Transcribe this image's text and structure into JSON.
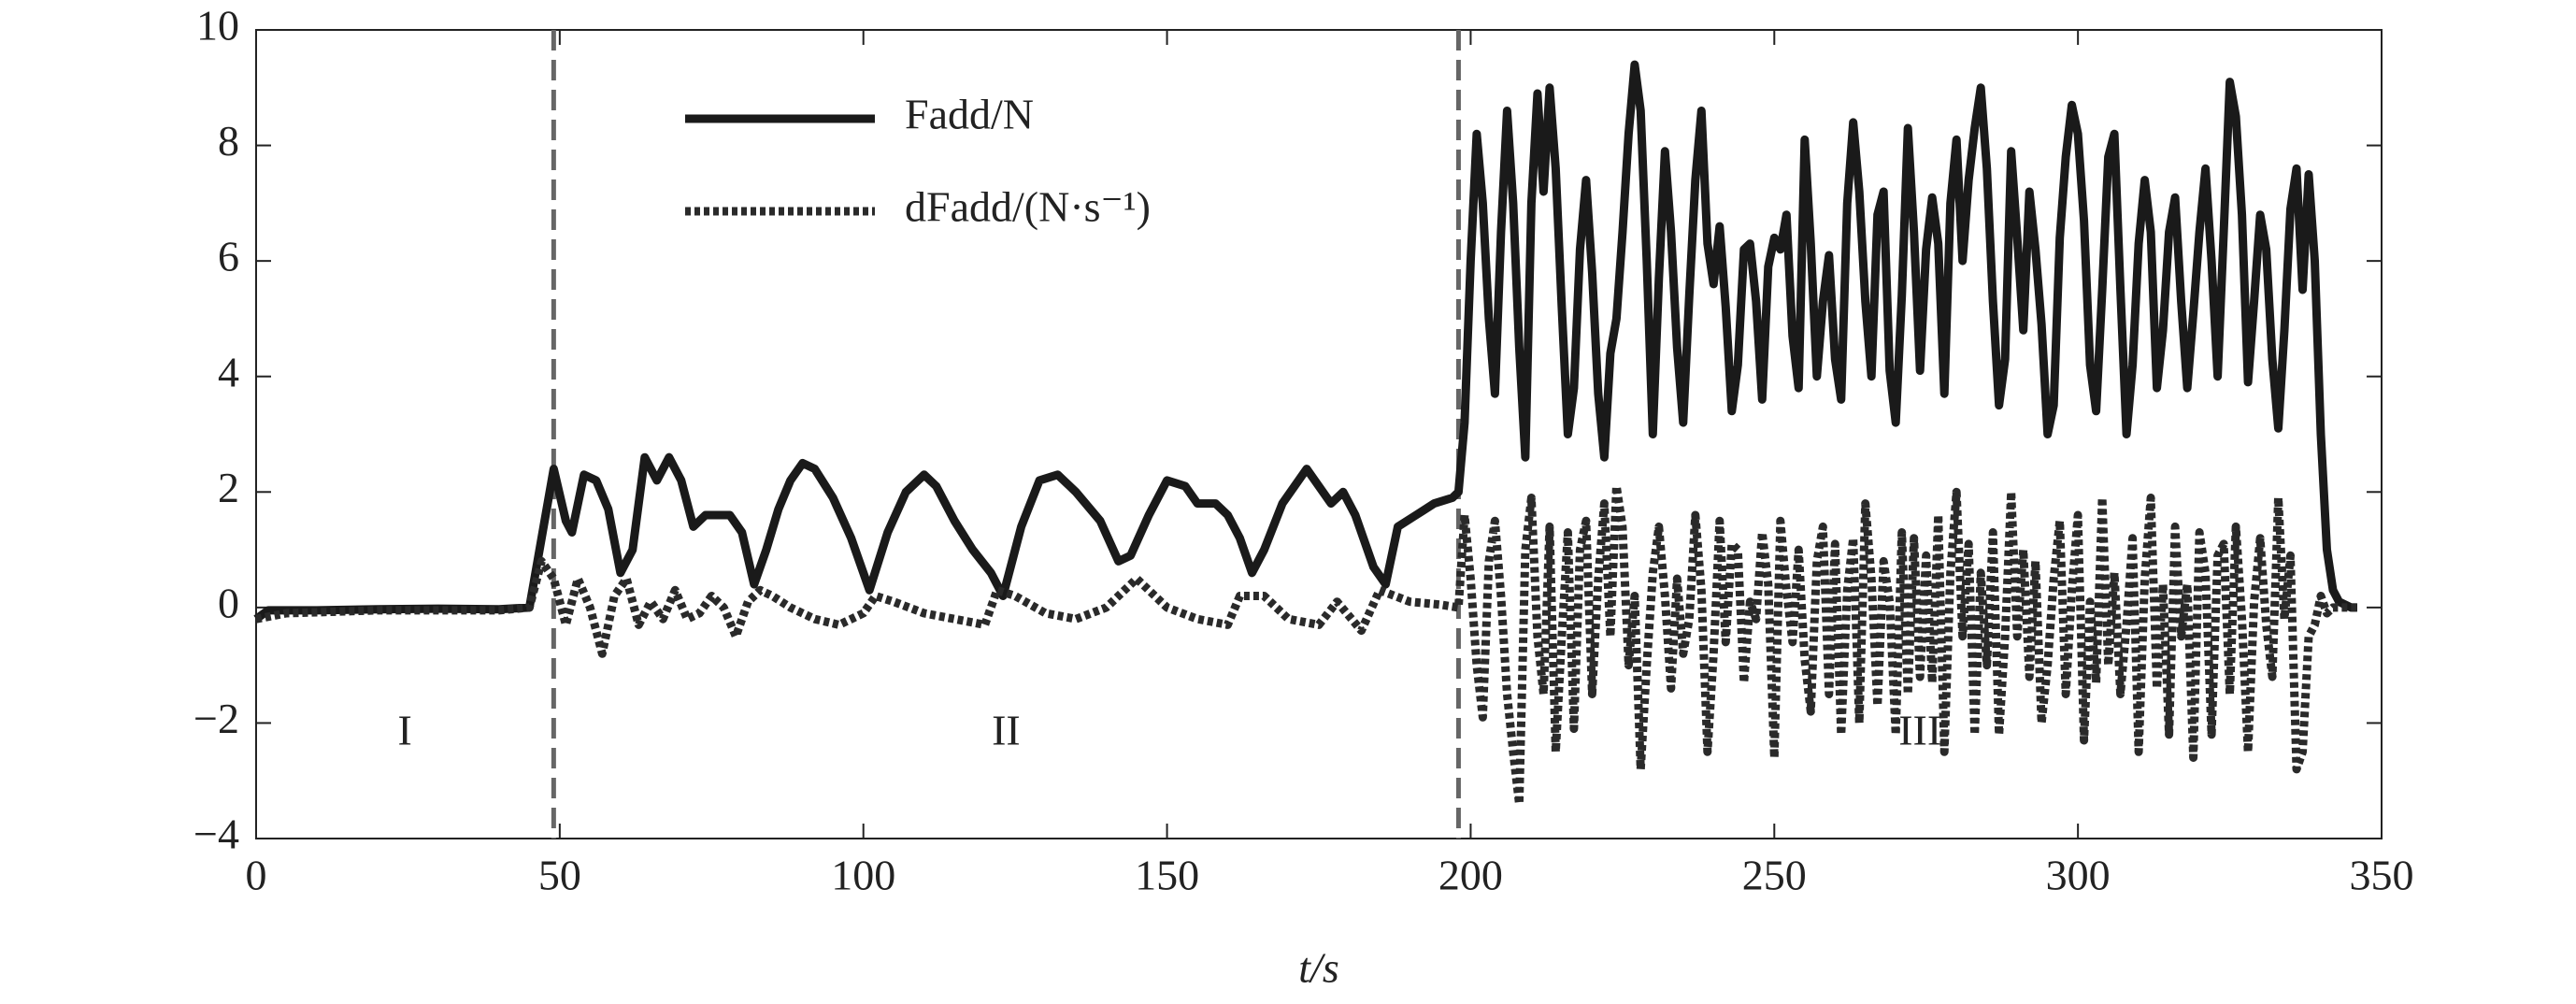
{
  "chart_data": {
    "type": "line",
    "xlabel": "t/s",
    "xlim": [
      0,
      350
    ],
    "xticks": [
      0,
      50,
      100,
      150,
      200,
      250,
      300,
      350
    ],
    "ylim": [
      -4,
      10
    ],
    "yticks": [
      {
        "value": -4,
        "label": "−4"
      },
      {
        "value": -2,
        "label": "−2"
      },
      0,
      2,
      4,
      6,
      8,
      10
    ],
    "vlines": [
      49,
      198
    ],
    "annotations": [
      "I",
      "II",
      "III"
    ],
    "legend": "upper left",
    "series": [
      {
        "name": "Fadd/N",
        "color": "#1a1a1a",
        "style": "solid",
        "x": [
          0,
          2,
          10,
          20,
          30,
          40,
          45,
          47,
          49,
          51,
          52,
          54,
          56,
          58,
          60,
          62,
          64,
          66,
          68,
          70,
          72,
          74,
          78,
          80,
          82,
          84,
          86,
          88,
          90,
          92,
          95,
          98,
          101,
          104,
          107,
          110,
          112,
          115,
          118,
          121,
          123,
          126,
          129,
          132,
          135,
          139,
          142,
          144,
          147,
          150,
          153,
          155,
          158,
          160,
          162,
          164,
          166,
          169,
          173,
          175,
          177,
          179,
          181,
          184,
          186,
          188,
          191,
          194,
          197,
          198,
          199,
          200,
          201,
          202,
          203,
          204,
          205,
          206,
          207,
          208,
          209,
          210,
          211,
          212,
          213,
          214,
          215,
          216,
          217,
          218,
          219,
          220,
          221,
          222,
          223,
          224,
          225,
          226,
          227,
          228,
          229,
          230,
          231,
          232,
          233,
          234,
          235,
          236,
          237,
          238,
          239,
          240,
          241,
          242,
          243,
          244,
          245,
          246,
          247,
          248,
          249,
          250,
          251,
          252,
          253,
          254,
          255,
          256,
          257,
          258,
          259,
          260,
          261,
          262,
          263,
          264,
          265,
          266,
          267,
          268,
          269,
          270,
          271,
          272,
          273,
          274,
          275,
          276,
          277,
          278,
          279,
          280,
          281,
          282,
          283,
          284,
          285,
          286,
          287,
          288,
          289,
          290,
          291,
          292,
          293,
          294,
          295,
          296,
          297,
          298,
          299,
          300,
          301,
          302,
          303,
          304,
          305,
          306,
          307,
          308,
          309,
          310,
          311,
          312,
          313,
          314,
          315,
          316,
          317,
          318,
          319,
          320,
          321,
          322,
          323,
          324,
          325,
          326,
          327,
          328,
          329,
          330,
          331,
          332,
          333,
          334,
          335,
          336,
          337,
          338,
          339,
          340,
          341,
          342,
          343,
          345,
          346
        ],
        "values": [
          -0.2,
          -0.05,
          -0.05,
          -0.03,
          -0.02,
          -0.03,
          0,
          1.2,
          2.4,
          1.5,
          1.3,
          2.3,
          2.2,
          1.7,
          0.6,
          1.0,
          2.6,
          2.2,
          2.6,
          2.2,
          1.4,
          1.6,
          1.6,
          1.3,
          0.4,
          1.0,
          1.7,
          2.2,
          2.5,
          2.4,
          1.9,
          1.2,
          0.3,
          1.3,
          2.0,
          2.3,
          2.1,
          1.5,
          1.0,
          0.6,
          0.2,
          1.4,
          2.2,
          2.3,
          2.0,
          1.5,
          0.8,
          0.9,
          1.6,
          2.2,
          2.1,
          1.8,
          1.8,
          1.6,
          1.2,
          0.6,
          1.0,
          1.8,
          2.4,
          2.1,
          1.8,
          2.0,
          1.6,
          0.7,
          0.4,
          1.4,
          1.6,
          1.8,
          1.9,
          2.0,
          3.2,
          6.0,
          8.2,
          7.0,
          5.0,
          3.7,
          6.5,
          8.6,
          7.0,
          4.5,
          2.6,
          7.0,
          8.9,
          7.2,
          9.0,
          7.6,
          5.2,
          3.0,
          3.8,
          6.2,
          7.4,
          5.8,
          3.7,
          2.6,
          4.4,
          5.0,
          6.5,
          8.2,
          9.4,
          8.6,
          6.0,
          3.0,
          5.7,
          7.9,
          6.5,
          4.5,
          3.2,
          5.4,
          7.4,
          8.6,
          6.3,
          5.6,
          6.6,
          5.2,
          3.4,
          4.2,
          6.2,
          6.3,
          5.3,
          3.6,
          5.9,
          6.4,
          6.2,
          6.8,
          4.7,
          3.8,
          8.1,
          6.3,
          4.0,
          5.3,
          6.1,
          4.3,
          3.6,
          7.0,
          8.4,
          7.2,
          5.3,
          4.0,
          6.8,
          7.2,
          4.1,
          3.2,
          5.4,
          8.3,
          6.5,
          4.1,
          6.2,
          7.1,
          6.3,
          3.7,
          7.0,
          8.1,
          6.0,
          7.4,
          8.3,
          9.0,
          7.6,
          5.3,
          3.5,
          4.3,
          7.9,
          6.4,
          4.8,
          7.2,
          6.2,
          4.9,
          3.0,
          3.5,
          6.4,
          7.8,
          8.7,
          8.2,
          6.7,
          4.2,
          3.4,
          5.5,
          7.8,
          8.2,
          5.5,
          3.0,
          4.2,
          6.3,
          7.4,
          6.5,
          3.8,
          4.8,
          6.5,
          7.1,
          5.3,
          3.8,
          5.1,
          6.5,
          7.6,
          6.0,
          4.0,
          6.5,
          9.1,
          8.5,
          6.8,
          3.9,
          5.3,
          6.8,
          6.2,
          4.3,
          3.1,
          4.8,
          6.9,
          7.6,
          5.5,
          7.5,
          6.0,
          3.0,
          1.0,
          0.3,
          0.1,
          0,
          0
        ]
      },
      {
        "name": "dFadd/(N·s⁻¹)",
        "color": "#2a2a2a",
        "style": "dotted",
        "x": [
          0,
          5,
          20,
          40,
          45,
          47,
          49,
          51,
          53,
          55,
          57,
          59,
          61,
          63,
          65,
          67,
          69,
          71,
          73,
          75,
          77,
          79,
          81,
          83,
          85,
          88,
          92,
          96,
          100,
          102,
          105,
          110,
          115,
          120,
          122,
          125,
          130,
          135,
          140,
          145,
          150,
          155,
          160,
          162,
          166,
          170,
          175,
          178,
          182,
          185,
          190,
          195,
          198,
          199,
          200,
          201,
          202,
          203,
          204,
          205,
          206,
          207,
          208,
          209,
          210,
          211,
          212,
          213,
          214,
          215,
          216,
          217,
          218,
          219,
          220,
          221,
          222,
          223,
          224,
          225,
          226,
          227,
          228,
          229,
          230,
          231,
          232,
          233,
          234,
          235,
          236,
          237,
          238,
          239,
          240,
          241,
          242,
          243,
          244,
          245,
          246,
          247,
          248,
          249,
          250,
          251,
          252,
          253,
          254,
          255,
          256,
          257,
          258,
          259,
          260,
          261,
          262,
          263,
          264,
          265,
          266,
          267,
          268,
          269,
          270,
          271,
          272,
          273,
          274,
          275,
          276,
          277,
          278,
          279,
          280,
          281,
          282,
          283,
          284,
          285,
          286,
          287,
          288,
          289,
          290,
          291,
          292,
          293,
          294,
          295,
          296,
          297,
          298,
          299,
          300,
          301,
          302,
          303,
          304,
          305,
          306,
          307,
          308,
          309,
          310,
          311,
          312,
          313,
          314,
          315,
          316,
          317,
          318,
          319,
          320,
          321,
          322,
          323,
          324,
          325,
          326,
          327,
          328,
          329,
          330,
          331,
          332,
          333,
          334,
          335,
          336,
          337,
          338,
          339,
          340,
          341,
          342,
          346
        ],
        "values": [
          -0.2,
          -0.1,
          -0.05,
          -0.05,
          0,
          0.8,
          0.5,
          -0.3,
          0.5,
          0,
          -0.8,
          0.2,
          0.5,
          -0.3,
          0.1,
          -0.2,
          0.3,
          -0.2,
          -0.1,
          0.2,
          0,
          -0.5,
          0.1,
          0.3,
          0.2,
          0,
          -0.2,
          -0.3,
          -0.1,
          0.2,
          0.1,
          -0.1,
          -0.2,
          -0.3,
          0.3,
          0.2,
          -0.1,
          -0.2,
          0,
          0.5,
          0,
          -0.2,
          -0.3,
          0.2,
          0.2,
          -0.2,
          -0.3,
          0.1,
          -0.4,
          0.3,
          0.1,
          0.05,
          0,
          1.6,
          0.5,
          -1.0,
          -1.9,
          0.8,
          1.5,
          0.2,
          -1.5,
          -2.5,
          -3.4,
          1.0,
          1.9,
          -0.5,
          -1.5,
          1.4,
          -2.5,
          -0.5,
          1.3,
          -2.1,
          1.0,
          1.5,
          -1.5,
          0.5,
          1.8,
          -0.5,
          2.1,
          1.4,
          -1.0,
          0.2,
          -2.8,
          -1.0,
          0.6,
          1.4,
          0.2,
          -1.4,
          0.5,
          -0.8,
          -0.2,
          1.6,
          0.3,
          -2.5,
          -0.8,
          1.5,
          -0.6,
          1.1,
          1.0,
          -1.3,
          0.1,
          -0.2,
          1.3,
          0.4,
          -2.6,
          1.5,
          0.3,
          -0.6,
          1.0,
          -0.9,
          -1.8,
          0.8,
          1.4,
          -1.5,
          1.1,
          -2.2,
          0.3,
          1.2,
          -2.0,
          1.8,
          0.5,
          -1.7,
          0.8,
          0.1,
          -2.2,
          1.3,
          -1.5,
          1.2,
          -1.2,
          0.9,
          -1.3,
          1.6,
          -2.5,
          0.6,
          2.0,
          -0.5,
          1.1,
          -2.2,
          0.6,
          -1.0,
          1.3,
          -2.2,
          -0.5,
          2.0,
          -0.5,
          1.0,
          -1.2,
          0.8,
          -2.0,
          -1.0,
          0.5,
          1.5,
          -1.5,
          0.3,
          1.6,
          -2.3,
          0.1,
          -1.3,
          1.9,
          -1.0,
          0.6,
          -1.5,
          -0.3,
          1.2,
          -2.5,
          0.5,
          1.9,
          -1.4,
          0.4,
          -2.2,
          1.4,
          -0.5,
          0.4,
          -2.6,
          1.3,
          0.6,
          -2.2,
          0.9,
          1.1,
          -1.5,
          1.4,
          -0.2,
          -2.5,
          0.1,
          1.2,
          -0.3,
          -1.2,
          1.9,
          -0.2,
          0.9,
          -2.8,
          -2.5,
          -0.5,
          -0.3,
          0.2,
          -0.1,
          0,
          0
        ]
      }
    ]
  }
}
